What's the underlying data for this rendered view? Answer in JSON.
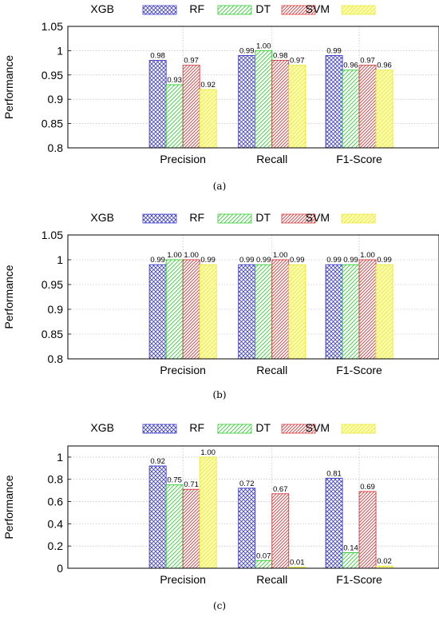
{
  "figure": {
    "panel_captions": [
      "(a)",
      "(b)",
      "(c)"
    ]
  },
  "colors": {
    "XGB": "#3a3acc",
    "RF": "#2ecc2e",
    "DT": "#d23a3a",
    "SVM": "#e8e83a"
  },
  "chart_data": [
    {
      "type": "bar",
      "panel": "(a)",
      "categories": [
        "Precision",
        "Recall",
        "F1-Score"
      ],
      "series": [
        {
          "name": "XGB",
          "values": [
            0.98,
            0.99,
            0.99
          ],
          "labels": [
            "0.98",
            "0.99",
            "0.99"
          ]
        },
        {
          "name": "RF",
          "values": [
            0.93,
            1.0,
            0.96
          ],
          "labels": [
            "0.93",
            "1.00",
            "0.96"
          ]
        },
        {
          "name": "DT",
          "values": [
            0.97,
            0.98,
            0.97
          ],
          "labels": [
            "0.97",
            "0.98",
            "0.97"
          ]
        },
        {
          "name": "SVM",
          "values": [
            0.92,
            0.97,
            0.96
          ],
          "labels": [
            "0.92",
            "0.97",
            "0.96"
          ]
        }
      ],
      "ylabel": "Performance",
      "ylim": [
        0.8,
        1.05
      ],
      "yticks": [
        0.8,
        0.85,
        0.9,
        0.95,
        1,
        1.05
      ],
      "ytick_labels": [
        "0.8",
        "0.85",
        "0.9",
        "0.95",
        "1",
        "1.05"
      ],
      "grid": true,
      "legend": "top"
    },
    {
      "type": "bar",
      "panel": "(b)",
      "categories": [
        "Precision",
        "Recall",
        "F1-Score"
      ],
      "series": [
        {
          "name": "XGB",
          "values": [
            0.99,
            0.99,
            0.99
          ],
          "labels": [
            "0.99",
            "0.99",
            "0.99"
          ]
        },
        {
          "name": "RF",
          "values": [
            1.0,
            0.99,
            0.99
          ],
          "labels": [
            "1.00",
            "0.99",
            "0.99"
          ]
        },
        {
          "name": "DT",
          "values": [
            1.0,
            1.0,
            1.0
          ],
          "labels": [
            "1.00",
            "1.00",
            "1.00"
          ]
        },
        {
          "name": "SVM",
          "values": [
            0.99,
            0.99,
            0.99
          ],
          "labels": [
            "0.99",
            "0.99",
            "0.99"
          ]
        }
      ],
      "ylabel": "Performance",
      "ylim": [
        0.8,
        1.05
      ],
      "yticks": [
        0.8,
        0.85,
        0.9,
        0.95,
        1,
        1.05
      ],
      "ytick_labels": [
        "0.8",
        "0.85",
        "0.9",
        "0.95",
        "1",
        "1.05"
      ],
      "grid": true,
      "legend": "top"
    },
    {
      "type": "bar",
      "panel": "(c)",
      "categories": [
        "Precision",
        "Recall",
        "F1-Score"
      ],
      "series": [
        {
          "name": "XGB",
          "values": [
            0.92,
            0.72,
            0.81
          ],
          "labels": [
            "0.92",
            "0.72",
            "0.81"
          ]
        },
        {
          "name": "RF",
          "values": [
            0.75,
            0.07,
            0.14
          ],
          "labels": [
            "0.75",
            "0.07",
            "0.14"
          ]
        },
        {
          "name": "DT",
          "values": [
            0.71,
            0.67,
            0.69
          ],
          "labels": [
            "0.71",
            "0.67",
            "0.69"
          ]
        },
        {
          "name": "SVM",
          "values": [
            1.0,
            0.01,
            0.02
          ],
          "labels": [
            "1.00",
            "0.01",
            "0.02"
          ]
        }
      ],
      "ylabel": "Performance",
      "ylim": [
        0,
        1.1
      ],
      "yticks": [
        0,
        0.2,
        0.4,
        0.6,
        0.8,
        1
      ],
      "ytick_labels": [
        "0",
        "0.2",
        "0.4",
        "0.6",
        "0.8",
        "1"
      ],
      "grid": true,
      "legend": "top"
    }
  ]
}
